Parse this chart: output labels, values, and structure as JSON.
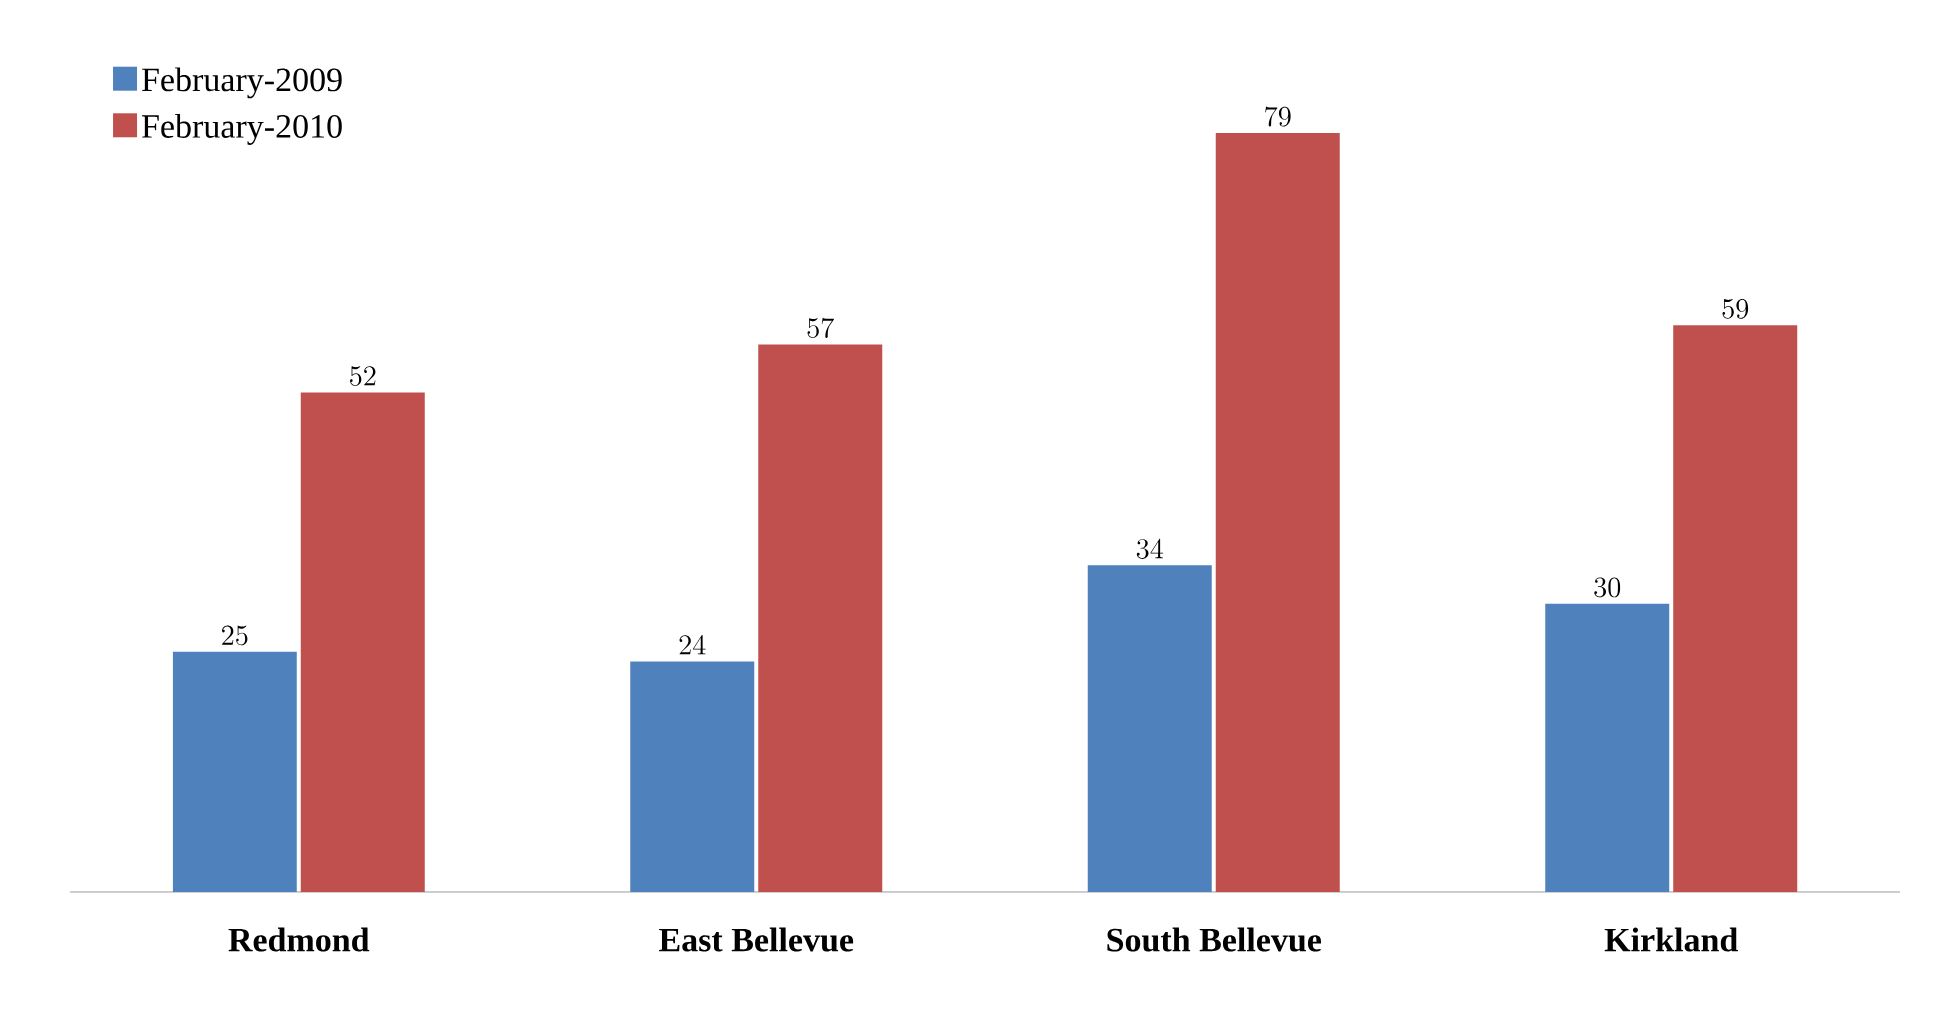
{
  "chart_data": {
    "type": "bar",
    "categories": [
      "Redmond",
      "East Bellevue",
      "South Bellevue",
      "Kirkland"
    ],
    "series": [
      {
        "name": "February-2009",
        "color": "#4f81bd",
        "values": [
          25,
          24,
          34,
          30
        ]
      },
      {
        "name": "February-2010",
        "color": "#c0504d",
        "values": [
          52,
          57,
          79,
          59
        ]
      }
    ],
    "data_labels": true,
    "legend": "top left"
  }
}
